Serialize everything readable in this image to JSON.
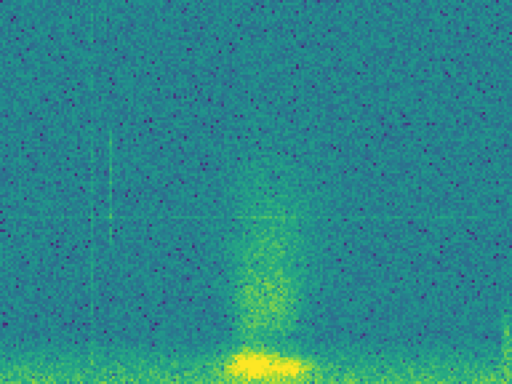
{
  "chart_data": {
    "type": "heatmap",
    "colormap": "viridis",
    "title": "",
    "xlabel": "",
    "ylabel": "",
    "axes_visible": false,
    "grid": false,
    "legend": "none",
    "value_range": [
      0,
      1
    ],
    "background_level": 0.45,
    "noise_amplitude": 0.1,
    "features": [
      {
        "kind": "vertical-line",
        "x": 0.18,
        "y_from": 0.05,
        "y_to": 1.0,
        "strength": 0.08
      },
      {
        "kind": "vertical-line",
        "x": 0.215,
        "y_from": 0.36,
        "y_to": 0.67,
        "strength": 0.16
      },
      {
        "kind": "horizontal-line",
        "y": 0.435,
        "x_from": 0.0,
        "x_to": 0.95,
        "strength": 0.07
      },
      {
        "kind": "band",
        "y_from": 0.0,
        "y_to": 0.12,
        "strength": 0.32
      },
      {
        "kind": "blob",
        "x": 0.53,
        "y": 0.35,
        "sx": 0.08,
        "sy": 0.22,
        "strength": 0.2
      },
      {
        "kind": "blob",
        "x": 0.49,
        "y": 0.18,
        "sx": 0.035,
        "sy": 0.12,
        "strength": 0.22
      },
      {
        "kind": "blob",
        "x": 0.55,
        "y": 0.2,
        "sx": 0.035,
        "sy": 0.1,
        "strength": 0.18
      },
      {
        "kind": "blob",
        "x": 0.49,
        "y": 0.05,
        "sx": 0.05,
        "sy": 0.035,
        "strength": 0.55
      },
      {
        "kind": "blob",
        "x": 0.57,
        "y": 0.04,
        "sx": 0.04,
        "sy": 0.03,
        "strength": 0.4
      },
      {
        "kind": "blob",
        "x": 0.99,
        "y": 0.12,
        "sx": 0.01,
        "sy": 0.08,
        "strength": 0.28
      }
    ]
  }
}
